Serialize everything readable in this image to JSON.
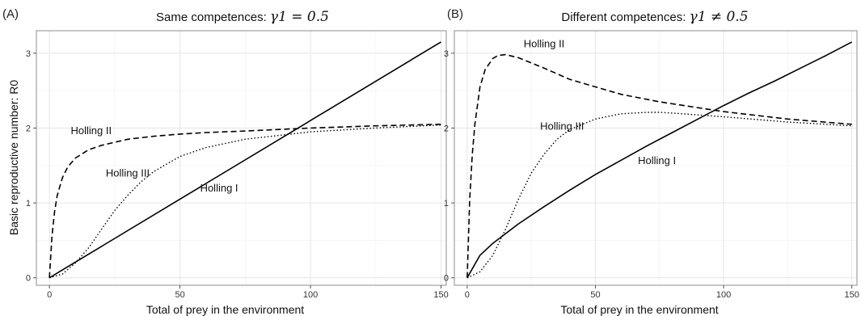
{
  "chart_data": [
    {
      "type": "line",
      "panel": "(A)",
      "title": "Same competences:",
      "title_math": "γ1 = 0.5",
      "xlabel": "Total of prey in the environment",
      "ylabel": "Basic reproductive number: R0",
      "xlim": [
        -5,
        152
      ],
      "ylim": [
        -0.1,
        3.3
      ],
      "xticks": [
        0,
        50,
        100,
        150
      ],
      "yticks": [
        0,
        1,
        2,
        3
      ],
      "grid": true,
      "legend": "none",
      "series": [
        {
          "name": "Holling I",
          "style": "solid",
          "x": [
            0,
            150
          ],
          "y": [
            0,
            3.15
          ]
        },
        {
          "name": "Holling II",
          "style": "dashed",
          "x": [
            0,
            1,
            2,
            3,
            5,
            7,
            10,
            15,
            20,
            30,
            40,
            50,
            60,
            75,
            100,
            125,
            150
          ],
          "y": [
            0,
            0.57,
            0.89,
            1.1,
            1.34,
            1.48,
            1.6,
            1.71,
            1.77,
            1.85,
            1.89,
            1.92,
            1.94,
            1.96,
            2.0,
            2.03,
            2.05
          ]
        },
        {
          "name": "Holling III",
          "style": "dotted",
          "x": [
            0,
            5,
            10,
            15,
            20,
            25,
            30,
            35,
            40,
            50,
            60,
            75,
            100,
            125,
            150
          ],
          "y": [
            0,
            0.05,
            0.2,
            0.4,
            0.65,
            0.9,
            1.1,
            1.28,
            1.42,
            1.62,
            1.74,
            1.85,
            1.95,
            2.0,
            2.04
          ]
        }
      ],
      "annotations": [
        {
          "text": "Holling II",
          "x": 16,
          "y": 1.92
        },
        {
          "text": "Holling III",
          "x": 30,
          "y": 1.35
        },
        {
          "text": "Holling I",
          "x": 65,
          "y": 1.15
        }
      ]
    },
    {
      "type": "line",
      "panel": "(B)",
      "title": "Different competences:",
      "title_math": "γ1 ≠ 0.5",
      "xlabel": "Total of prey in the environment",
      "ylabel": "",
      "xlim": [
        -5,
        152
      ],
      "ylim": [
        -0.1,
        3.3
      ],
      "xticks": [
        0,
        50,
        100,
        150
      ],
      "yticks": [
        0,
        1,
        2,
        3
      ],
      "grid": true,
      "legend": "none",
      "series": [
        {
          "name": "Holling I",
          "style": "solid",
          "x": [
            0,
            5,
            10,
            20,
            30,
            40,
            50,
            60,
            70,
            80,
            90,
            100,
            110,
            120,
            130,
            140,
            150
          ],
          "y": [
            0,
            0.3,
            0.46,
            0.72,
            0.95,
            1.17,
            1.38,
            1.57,
            1.76,
            1.94,
            2.12,
            2.3,
            2.47,
            2.63,
            2.8,
            2.97,
            3.15
          ]
        },
        {
          "name": "Holling II",
          "style": "dashed",
          "x": [
            0,
            1,
            2,
            3,
            5,
            7,
            10,
            12,
            15,
            20,
            30,
            40,
            50,
            60,
            75,
            100,
            125,
            150
          ],
          "y": [
            0,
            1.05,
            1.65,
            2.05,
            2.55,
            2.78,
            2.93,
            2.97,
            2.98,
            2.94,
            2.8,
            2.65,
            2.55,
            2.45,
            2.35,
            2.22,
            2.12,
            2.05
          ]
        },
        {
          "name": "Holling III",
          "style": "dotted",
          "x": [
            0,
            5,
            10,
            15,
            20,
            25,
            30,
            35,
            40,
            50,
            60,
            70,
            75,
            80,
            100,
            125,
            150
          ],
          "y": [
            0,
            0.08,
            0.3,
            0.65,
            1.05,
            1.4,
            1.65,
            1.85,
            1.98,
            2.12,
            2.19,
            2.21,
            2.21,
            2.2,
            2.15,
            2.08,
            2.03
          ]
        }
      ],
      "annotations": [
        {
          "text": "Holling II",
          "x": 30,
          "y": 3.08
        },
        {
          "text": "Holling III",
          "x": 37,
          "y": 1.98
        },
        {
          "text": "Holling I",
          "x": 74,
          "y": 1.52
        }
      ]
    }
  ]
}
